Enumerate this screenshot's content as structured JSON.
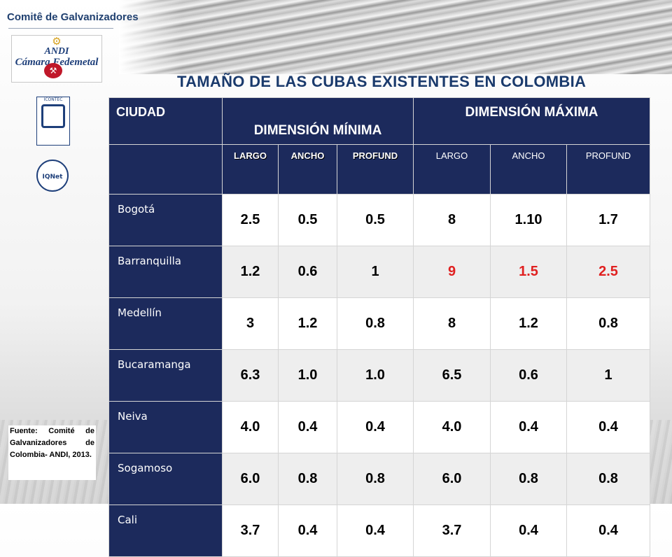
{
  "brand": {
    "name": "Comitê de Galvanizadores",
    "andi_logo": "ANDI",
    "andi_sub": "Cámara Fedemetal",
    "cert_1": "ICONTEC",
    "cert_2": "IQNet"
  },
  "title": "TAMAÑO DE LAS CUBAS EXISTENTES EN COLOMBIA",
  "source_note": "Fuente: Comité de Galvanizadores de Colombia- ANDI, 2013.",
  "table": {
    "col_city": "CIUDAD",
    "group_min": "DIMENSIÓN MÍNIMA",
    "group_max": "DIMENSIÓN MÁXIMA",
    "subheaders_min": [
      "LARGO",
      "ANCHO",
      "PROFUND"
    ],
    "subheaders_max": [
      "LARGO",
      "ANCHO",
      "PROFUND"
    ],
    "rows": [
      {
        "city": "Bogotá",
        "values": [
          "2.5",
          "0.5",
          "0.5",
          "8",
          "1.10",
          "1.7"
        ]
      },
      {
        "city": "Barranquilla",
        "values": [
          "1.2",
          "0.6",
          "1",
          "9",
          "1.5",
          "2.5"
        ]
      },
      {
        "city": "Medellín",
        "values": [
          "3",
          "1.2",
          "0.8",
          "8",
          "1.2",
          "0.8"
        ]
      },
      {
        "city": "Bucaramanga",
        "values": [
          "6.3",
          "1.0",
          "1.0",
          "6.5",
          "0.6",
          "1"
        ]
      },
      {
        "city": "Neiva",
        "values": [
          "4.0",
          "0.4",
          "0.4",
          "4.0",
          "0.4",
          "0.4"
        ]
      },
      {
        "city": "Sogamoso",
        "values": [
          "6.0",
          "0.8",
          "0.8",
          "6.0",
          "0.8",
          "0.8"
        ]
      },
      {
        "city": "Cali",
        "values": [
          "3.7",
          "0.4",
          "0.4",
          "3.7",
          "0.4",
          "0.4"
        ]
      }
    ],
    "highlight_color": "#e02020",
    "header_color": "#1c2a5c"
  }
}
